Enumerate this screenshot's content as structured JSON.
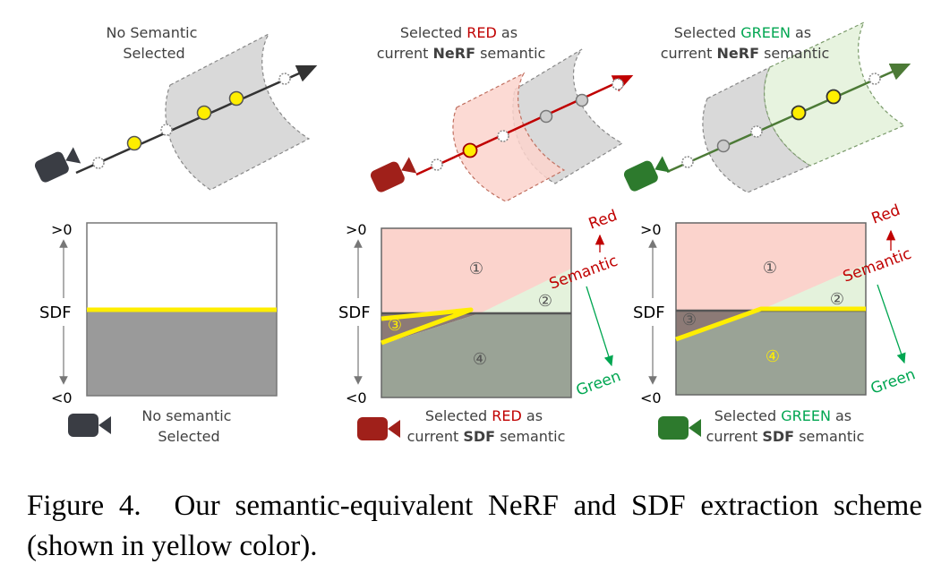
{
  "colors": {
    "red": "#c00000",
    "green": "#00a651",
    "dark_green": "#2e7d32",
    "camera_gray": "#3a3d44",
    "camera_red": "#a0201a",
    "camera_green": "#2d7a2d",
    "highlight": "#ffee00",
    "cylinder": "#d9d9d9",
    "red_fill": "#fbd3cc",
    "green_fill": "#e4f2dc",
    "sdf_negative": "#9aa396"
  },
  "panels": {
    "nerf_none": {
      "line1": "No Semantic",
      "line2": "Selected"
    },
    "nerf_red": {
      "l1_pre": "Selected ",
      "l1_sem": "RED",
      "l1_post": " as",
      "l2_pre": "current ",
      "l2_bold": "NeRF",
      "l2_post": " semantic"
    },
    "nerf_green": {
      "l1_pre": "Selected ",
      "l1_sem": "GREEN",
      "l1_post": " as",
      "l2_pre": "current ",
      "l2_bold": "NeRF",
      "l2_post": " semantic"
    },
    "sdf_none": {
      "line1": "No semantic",
      "line2": "Selected"
    },
    "sdf_red": {
      "l1_pre": "Selected ",
      "l1_sem": "RED",
      "l1_post": " as",
      "l2_pre": "current ",
      "l2_bold": "SDF",
      "l2_post": " semantic"
    },
    "sdf_green": {
      "l1_pre": "Selected ",
      "l1_sem": "GREEN",
      "l1_post": " as",
      "l2_pre": "current ",
      "l2_bold": "SDF",
      "l2_post": " semantic"
    }
  },
  "axis": {
    "top": ">0",
    "label": "SDF",
    "bottom": "<0"
  },
  "regions": {
    "r1": "①",
    "r2": "②",
    "r3": "③",
    "r4": "④"
  },
  "semantic_arrows": {
    "red": "Red",
    "semantic": "Semantic",
    "green": "Green"
  },
  "caption": {
    "label": "Figure 4.",
    "text": "Our semantic-equivalent NeRF and SDF extraction scheme (shown in yellow color)."
  }
}
